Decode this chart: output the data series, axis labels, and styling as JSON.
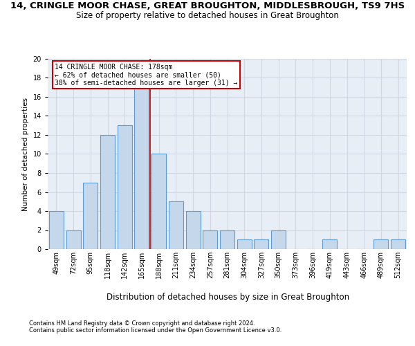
{
  "title": "14, CRINGLE MOOR CHASE, GREAT BROUGHTON, MIDDLESBROUGH, TS9 7HS",
  "subtitle": "Size of property relative to detached houses in Great Broughton",
  "xlabel": "Distribution of detached houses by size in Great Broughton",
  "ylabel": "Number of detached properties",
  "bin_labels": [
    "49sqm",
    "72sqm",
    "95sqm",
    "118sqm",
    "142sqm",
    "165sqm",
    "188sqm",
    "211sqm",
    "234sqm",
    "257sqm",
    "281sqm",
    "304sqm",
    "327sqm",
    "350sqm",
    "373sqm",
    "396sqm",
    "419sqm",
    "443sqm",
    "466sqm",
    "489sqm",
    "512sqm"
  ],
  "bar_values": [
    4,
    2,
    7,
    12,
    13,
    17,
    10,
    5,
    4,
    2,
    2,
    1,
    1,
    2,
    0,
    0,
    1,
    0,
    0,
    1,
    1
  ],
  "bar_color": "#c5d8eb",
  "bar_edge_color": "#5b9bd5",
  "property_line_x": 5,
  "annotation_text": "14 CRINGLE MOOR CHASE: 178sqm\n← 62% of detached houses are smaller (50)\n38% of semi-detached houses are larger (31) →",
  "annotation_box_color": "#ffffff",
  "annotation_box_edge_color": "#cc0000",
  "red_line_color": "#cc0000",
  "ylim": [
    0,
    20
  ],
  "yticks": [
    0,
    2,
    4,
    6,
    8,
    10,
    12,
    14,
    16,
    18,
    20
  ],
  "grid_color": "#d0d8e4",
  "background_color": "#e8eef5",
  "footer_line1": "Contains HM Land Registry data © Crown copyright and database right 2024.",
  "footer_line2": "Contains public sector information licensed under the Open Government Licence v3.0.",
  "title_fontsize": 9.5,
  "subtitle_fontsize": 8.5,
  "xlabel_fontsize": 8.5,
  "ylabel_fontsize": 7.5,
  "tick_fontsize": 7,
  "footer_fontsize": 6,
  "property_line_bin_index": 5
}
